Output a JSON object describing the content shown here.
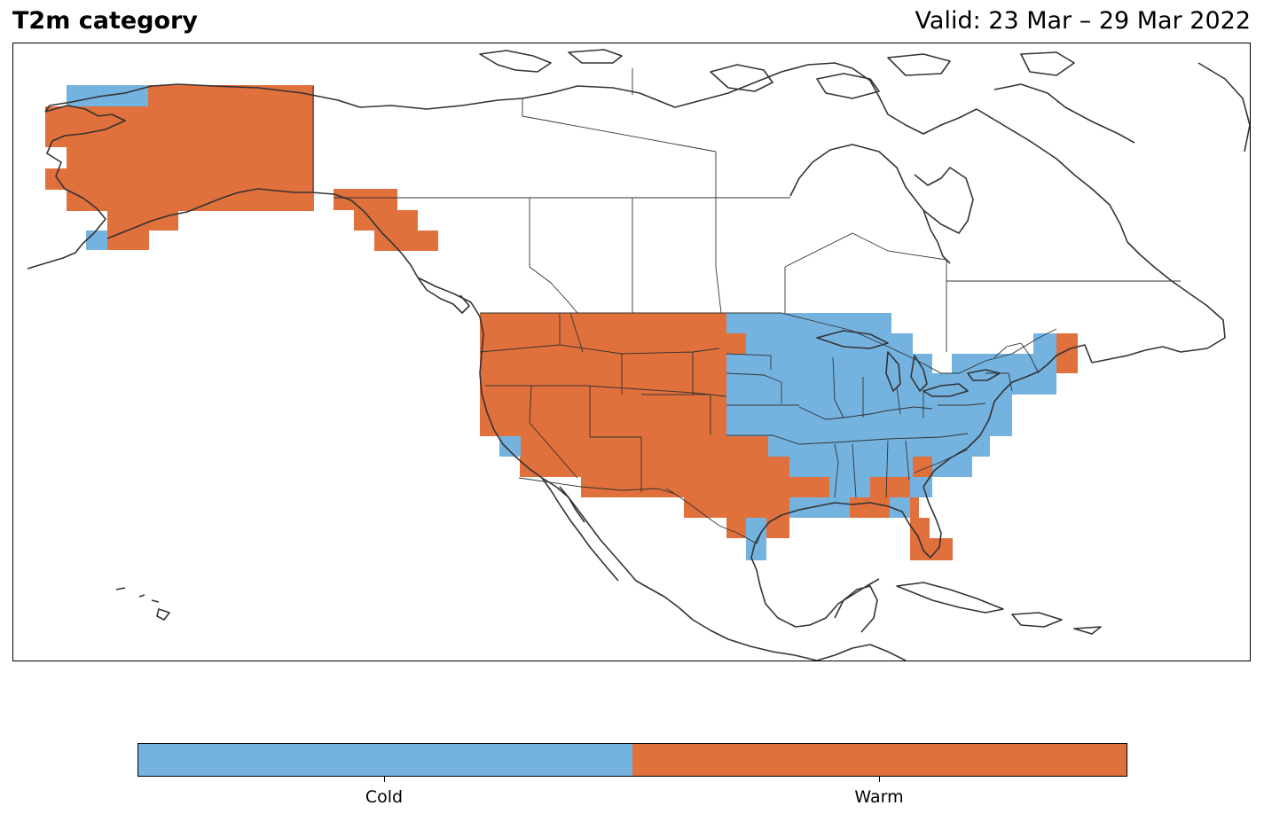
{
  "title": "T2m category",
  "valid": "Valid: 23 Mar – 29 Mar 2022",
  "legend": {
    "categories": [
      {
        "label": "Cold",
        "color": "#74b3e0"
      },
      {
        "label": "Warm",
        "color": "#e0703c"
      }
    ]
  },
  "colors": {
    "cold": "#74b3e0",
    "warm": "#e0703c",
    "coastline": "#333333",
    "border": "#333333"
  }
}
